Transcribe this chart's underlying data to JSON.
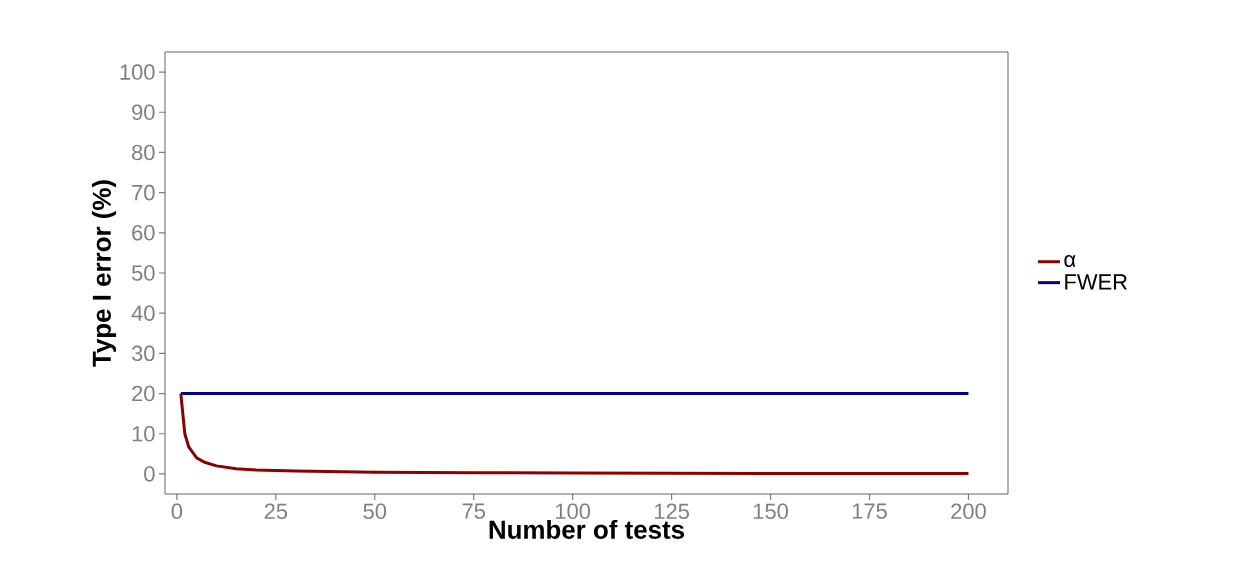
{
  "chart_data": {
    "type": "line",
    "xlabel": "Number of tests",
    "ylabel": "Type I error (%)",
    "xlim": [
      -3,
      210
    ],
    "ylim": [
      -5,
      105
    ],
    "xticks": [
      0,
      25,
      50,
      75,
      100,
      125,
      150,
      175,
      200
    ],
    "yticks": [
      0,
      10,
      20,
      30,
      40,
      50,
      60,
      70,
      80,
      90,
      100
    ],
    "grid": false,
    "legend": "right",
    "marker": "none",
    "line_style": "solid",
    "series": [
      {
        "name": "α",
        "color": "#8b0000",
        "x": [
          1,
          2,
          3,
          5,
          7,
          10,
          15,
          20,
          30,
          50,
          75,
          100,
          150,
          200
        ],
        "values": [
          20,
          10,
          6.7,
          4,
          2.9,
          2,
          1.3,
          1,
          0.7,
          0.4,
          0.3,
          0.2,
          0.1,
          0.1
        ]
      },
      {
        "name": "FWER",
        "color": "#00008b",
        "x": [
          1,
          200
        ],
        "values": [
          20,
          20
        ]
      }
    ]
  }
}
